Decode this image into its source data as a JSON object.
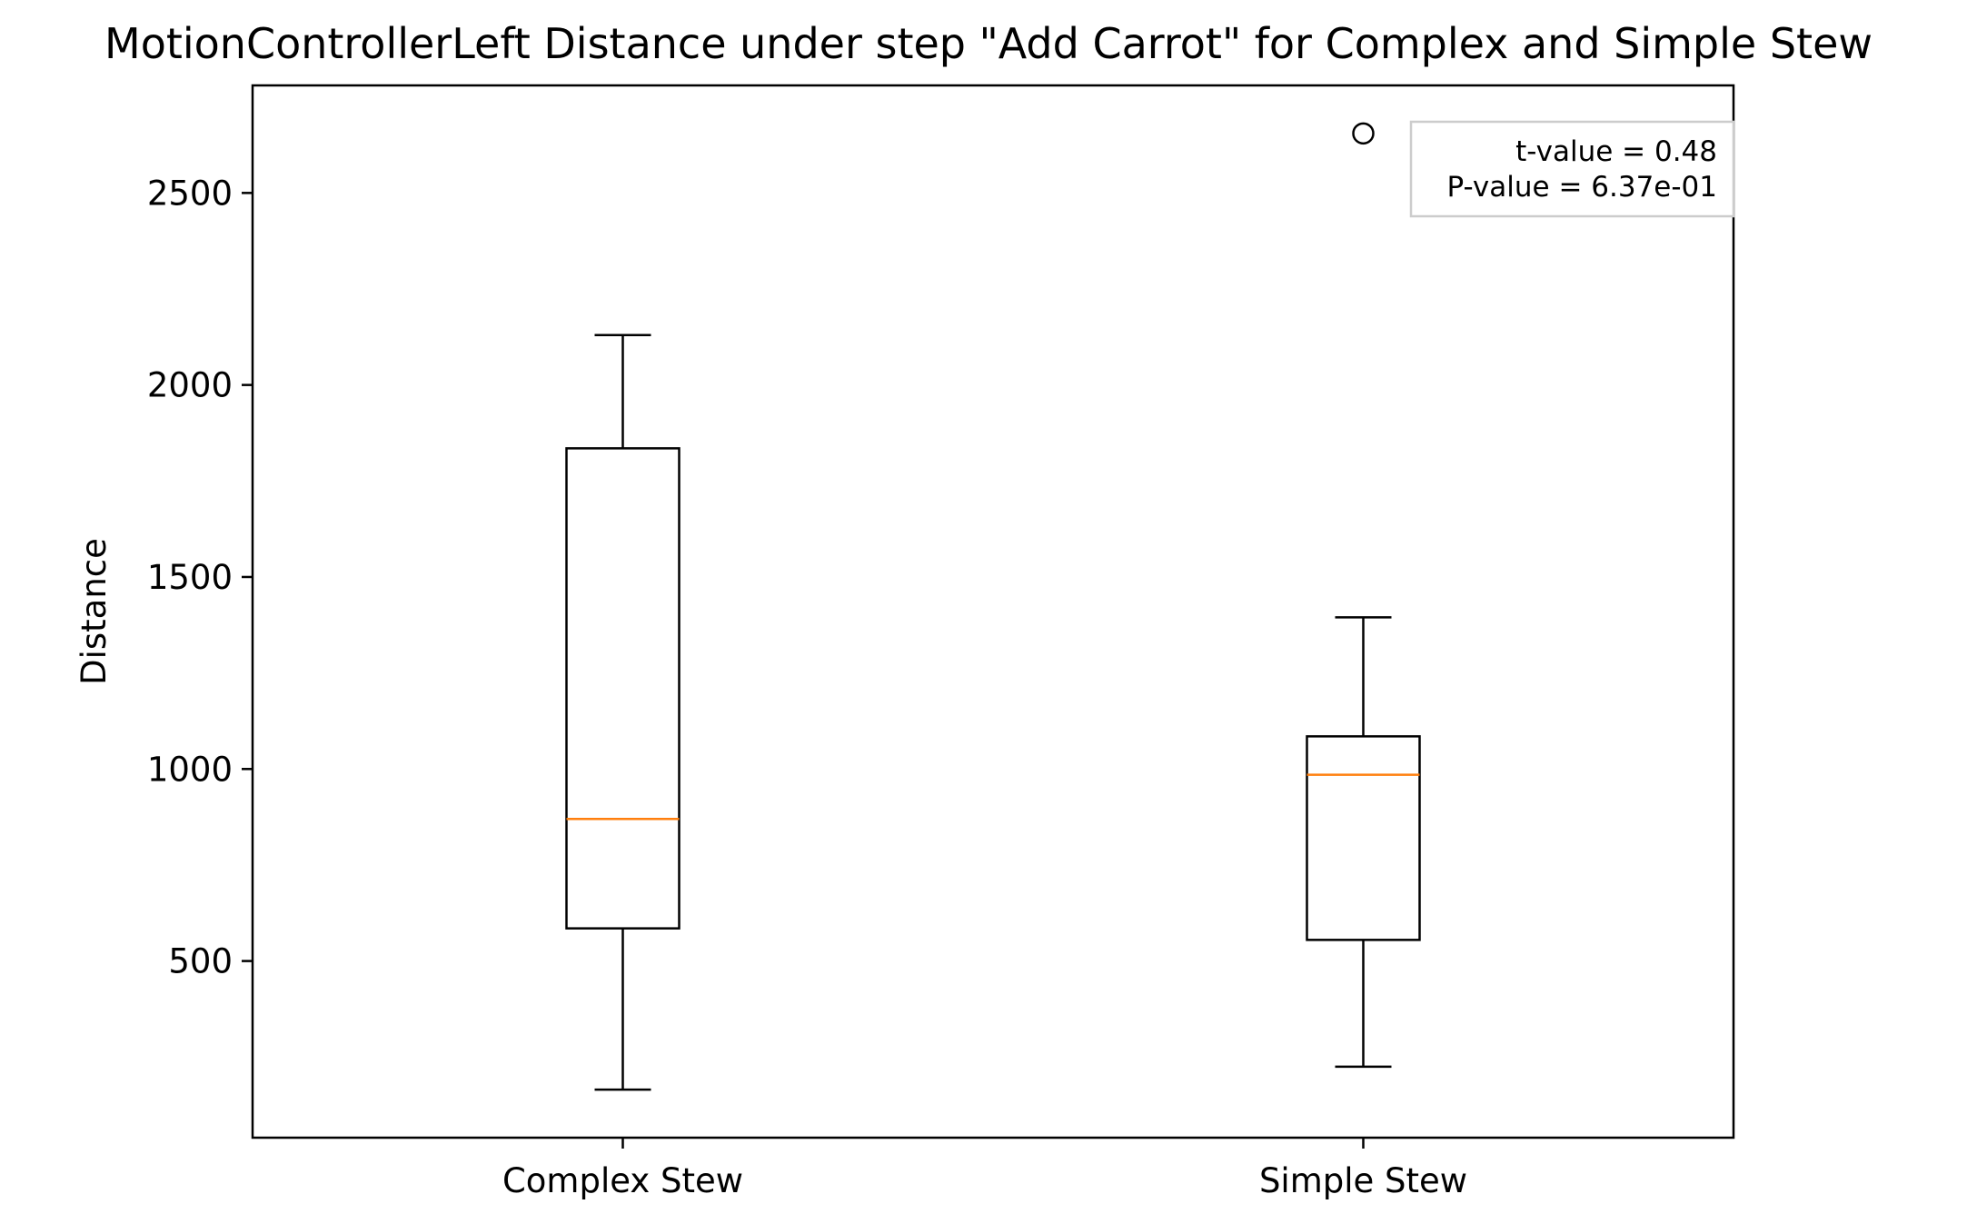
{
  "chart_data": {
    "type": "box",
    "title": "MotionControllerLeft Distance under step \"Add Carrot\" for Complex and Simple Stew",
    "xlabel": "",
    "ylabel": "Distance",
    "ylim": [
      40,
      2780
    ],
    "yticks": [
      500,
      1000,
      1500,
      2000,
      2500
    ],
    "categories": [
      "Complex Stew",
      "Simple Stew"
    ],
    "boxes": [
      {
        "category": "Complex Stew",
        "whisker_low": 165,
        "q1": 585,
        "median": 870,
        "q3": 1835,
        "whisker_high": 2130,
        "outliers": []
      },
      {
        "category": "Simple Stew",
        "whisker_low": 225,
        "q1": 555,
        "median": 985,
        "q3": 1085,
        "whisker_high": 1395,
        "outliers": [
          2655
        ]
      }
    ],
    "annotation": {
      "lines": [
        "t-value = 0.48",
        "P-value = 6.37e-01"
      ],
      "placement": "top-right"
    },
    "colors": {
      "box": "#000000",
      "median": "#ff7f0e",
      "annotation_border": "#cccccc"
    }
  }
}
